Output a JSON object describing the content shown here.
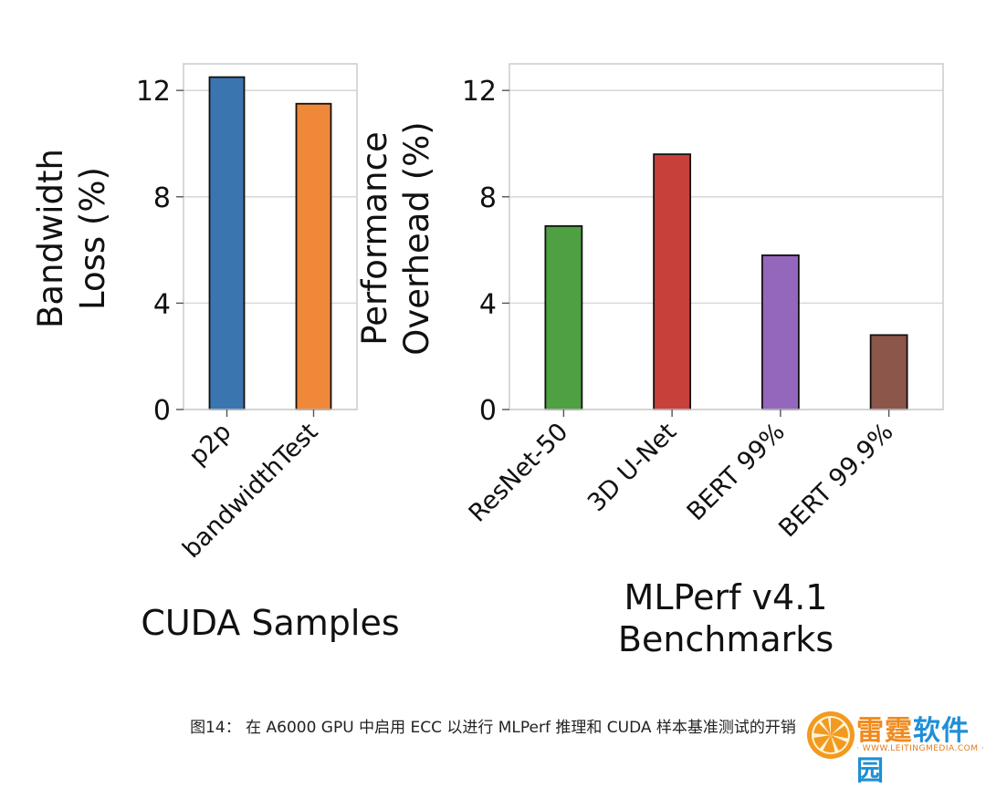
{
  "chart_data": [
    {
      "type": "bar",
      "xlabel": "CUDA Samples",
      "ylabel": "Bandwidth\nLoss (%)",
      "ylim": [
        0,
        13
      ],
      "yticks": [
        0,
        4,
        8,
        12
      ],
      "grid": true,
      "categories": [
        "p2p",
        "bandwidthTest"
      ],
      "values": [
        12.5,
        11.5
      ],
      "colors": [
        "#3a75b0",
        "#f0883a"
      ]
    },
    {
      "type": "bar",
      "xlabel": "MLPerf v4.1\nBenchmarks",
      "ylabel": "Performance\nOverhead (%)",
      "ylim": [
        0,
        13
      ],
      "yticks": [
        0,
        4,
        8,
        12
      ],
      "grid": true,
      "categories": [
        "ResNet-50",
        "3D U-Net",
        "BERT 99%",
        "BERT 99.9%"
      ],
      "values": [
        6.9,
        9.6,
        5.8,
        2.8
      ],
      "colors": [
        "#4ea043",
        "#c8403a",
        "#9467bd",
        "#8c564b"
      ]
    }
  ],
  "caption": "图14： 在 A6000 GPU 中启用 ECC 以进行 MLPerf 推理和 CUDA 样本基准测试的开销",
  "watermark": {
    "text": "雷霆软件园",
    "sub": "· WWW.LEITINGMEDIA.COM ·",
    "colors": [
      "#f08a1c",
      "#1f8fd6"
    ]
  }
}
